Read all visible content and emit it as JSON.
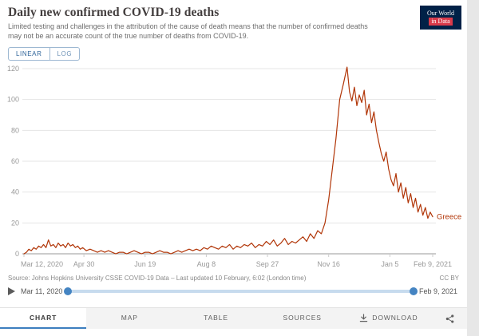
{
  "header": {
    "title": "Daily new confirmed COVID-19 deaths",
    "subtitle": "Limited testing and challenges in the attribution of the cause of death means that the number of confirmed deaths may not be an accurate count of the true number of deaths from COVID-19.",
    "logo": {
      "line1": "Our World",
      "line2": "in Data"
    }
  },
  "controls": {
    "linear_label": "LINEAR",
    "log_label": "LOG"
  },
  "chart_data": {
    "type": "line",
    "title": "Daily new confirmed COVID-19 deaths",
    "entity_label": "Greece",
    "line_color": "#b13507",
    "xlim_days": [
      0,
      334
    ],
    "ylim": [
      0,
      120
    ],
    "y_ticks": [
      0,
      20,
      40,
      60,
      80,
      100,
      120
    ],
    "x_ticks": [
      {
        "day": 0,
        "label": "Mar 12, 2020"
      },
      {
        "day": 49,
        "label": "Apr 30"
      },
      {
        "day": 99,
        "label": "Jun 19"
      },
      {
        "day": 149,
        "label": "Aug 8"
      },
      {
        "day": 199,
        "label": "Sep 27"
      },
      {
        "day": 249,
        "label": "Nov 16"
      },
      {
        "day": 299,
        "label": "Jan 5"
      },
      {
        "day": 334,
        "label": "Feb 9, 2021"
      }
    ],
    "grid": true,
    "legend_position": "end-of-line",
    "series": [
      {
        "name": "Greece",
        "color": "#b13507",
        "points": [
          [
            0,
            0
          ],
          [
            2,
            1
          ],
          [
            4,
            3
          ],
          [
            6,
            2
          ],
          [
            8,
            4
          ],
          [
            10,
            3
          ],
          [
            12,
            5
          ],
          [
            14,
            4
          ],
          [
            16,
            6
          ],
          [
            18,
            4
          ],
          [
            20,
            9
          ],
          [
            22,
            5
          ],
          [
            24,
            6
          ],
          [
            26,
            4
          ],
          [
            28,
            7
          ],
          [
            30,
            5
          ],
          [
            32,
            6
          ],
          [
            34,
            4
          ],
          [
            36,
            7
          ],
          [
            38,
            5
          ],
          [
            40,
            6
          ],
          [
            42,
            4
          ],
          [
            44,
            5
          ],
          [
            46,
            3
          ],
          [
            48,
            4
          ],
          [
            51,
            2
          ],
          [
            54,
            3
          ],
          [
            57,
            2
          ],
          [
            60,
            1
          ],
          [
            63,
            2
          ],
          [
            66,
            1
          ],
          [
            69,
            2
          ],
          [
            72,
            1
          ],
          [
            75,
            0
          ],
          [
            78,
            1
          ],
          [
            81,
            1
          ],
          [
            84,
            0
          ],
          [
            87,
            1
          ],
          [
            90,
            2
          ],
          [
            93,
            1
          ],
          [
            96,
            0
          ],
          [
            99,
            1
          ],
          [
            102,
            1
          ],
          [
            105,
            0
          ],
          [
            108,
            1
          ],
          [
            111,
            2
          ],
          [
            114,
            1
          ],
          [
            117,
            1
          ],
          [
            120,
            0
          ],
          [
            123,
            1
          ],
          [
            126,
            2
          ],
          [
            129,
            1
          ],
          [
            132,
            2
          ],
          [
            135,
            3
          ],
          [
            138,
            2
          ],
          [
            141,
            3
          ],
          [
            144,
            2
          ],
          [
            147,
            4
          ],
          [
            150,
            3
          ],
          [
            153,
            5
          ],
          [
            156,
            4
          ],
          [
            159,
            3
          ],
          [
            162,
            5
          ],
          [
            165,
            4
          ],
          [
            168,
            6
          ],
          [
            171,
            3
          ],
          [
            174,
            5
          ],
          [
            177,
            4
          ],
          [
            180,
            6
          ],
          [
            183,
            5
          ],
          [
            186,
            7
          ],
          [
            189,
            4
          ],
          [
            192,
            6
          ],
          [
            195,
            5
          ],
          [
            198,
            8
          ],
          [
            201,
            6
          ],
          [
            204,
            9
          ],
          [
            207,
            5
          ],
          [
            210,
            7
          ],
          [
            213,
            10
          ],
          [
            216,
            6
          ],
          [
            219,
            8
          ],
          [
            222,
            7
          ],
          [
            225,
            9
          ],
          [
            228,
            11
          ],
          [
            231,
            8
          ],
          [
            234,
            13
          ],
          [
            237,
            10
          ],
          [
            240,
            15
          ],
          [
            243,
            13
          ],
          [
            246,
            20
          ],
          [
            249,
            35
          ],
          [
            252,
            55
          ],
          [
            255,
            75
          ],
          [
            258,
            100
          ],
          [
            261,
            110
          ],
          [
            264,
            121
          ],
          [
            266,
            105
          ],
          [
            268,
            99
          ],
          [
            270,
            108
          ],
          [
            272,
            96
          ],
          [
            274,
            103
          ],
          [
            276,
            98
          ],
          [
            278,
            106
          ],
          [
            280,
            90
          ],
          [
            282,
            97
          ],
          [
            284,
            85
          ],
          [
            286,
            92
          ],
          [
            288,
            80
          ],
          [
            290,
            72
          ],
          [
            292,
            65
          ],
          [
            294,
            60
          ],
          [
            296,
            66
          ],
          [
            298,
            55
          ],
          [
            300,
            48
          ],
          [
            302,
            44
          ],
          [
            304,
            52
          ],
          [
            306,
            40
          ],
          [
            308,
            46
          ],
          [
            310,
            36
          ],
          [
            312,
            43
          ],
          [
            314,
            33
          ],
          [
            316,
            39
          ],
          [
            318,
            30
          ],
          [
            320,
            36
          ],
          [
            322,
            27
          ],
          [
            324,
            32
          ],
          [
            326,
            25
          ],
          [
            328,
            30
          ],
          [
            330,
            23
          ],
          [
            332,
            27
          ],
          [
            334,
            24
          ]
        ]
      }
    ]
  },
  "footer": {
    "source": "Source: Johns Hopkins University CSSE COVID-19 Data – Last updated 10 February, 6:02 (London time)",
    "license": "CC BY"
  },
  "timeline": {
    "start_label": "Mar 11, 2020",
    "end_label": "Feb 9, 2021"
  },
  "tabs": [
    {
      "label": "CHART",
      "active": true
    },
    {
      "label": "MAP"
    },
    {
      "label": "TABLE"
    },
    {
      "label": "SOURCES"
    },
    {
      "label": "DOWNLOAD"
    }
  ],
  "colors": {
    "accent_blue": "#3c7ebf",
    "series_red": "#b13507",
    "logo_navy": "#002147",
    "logo_red": "#d93a4a"
  }
}
